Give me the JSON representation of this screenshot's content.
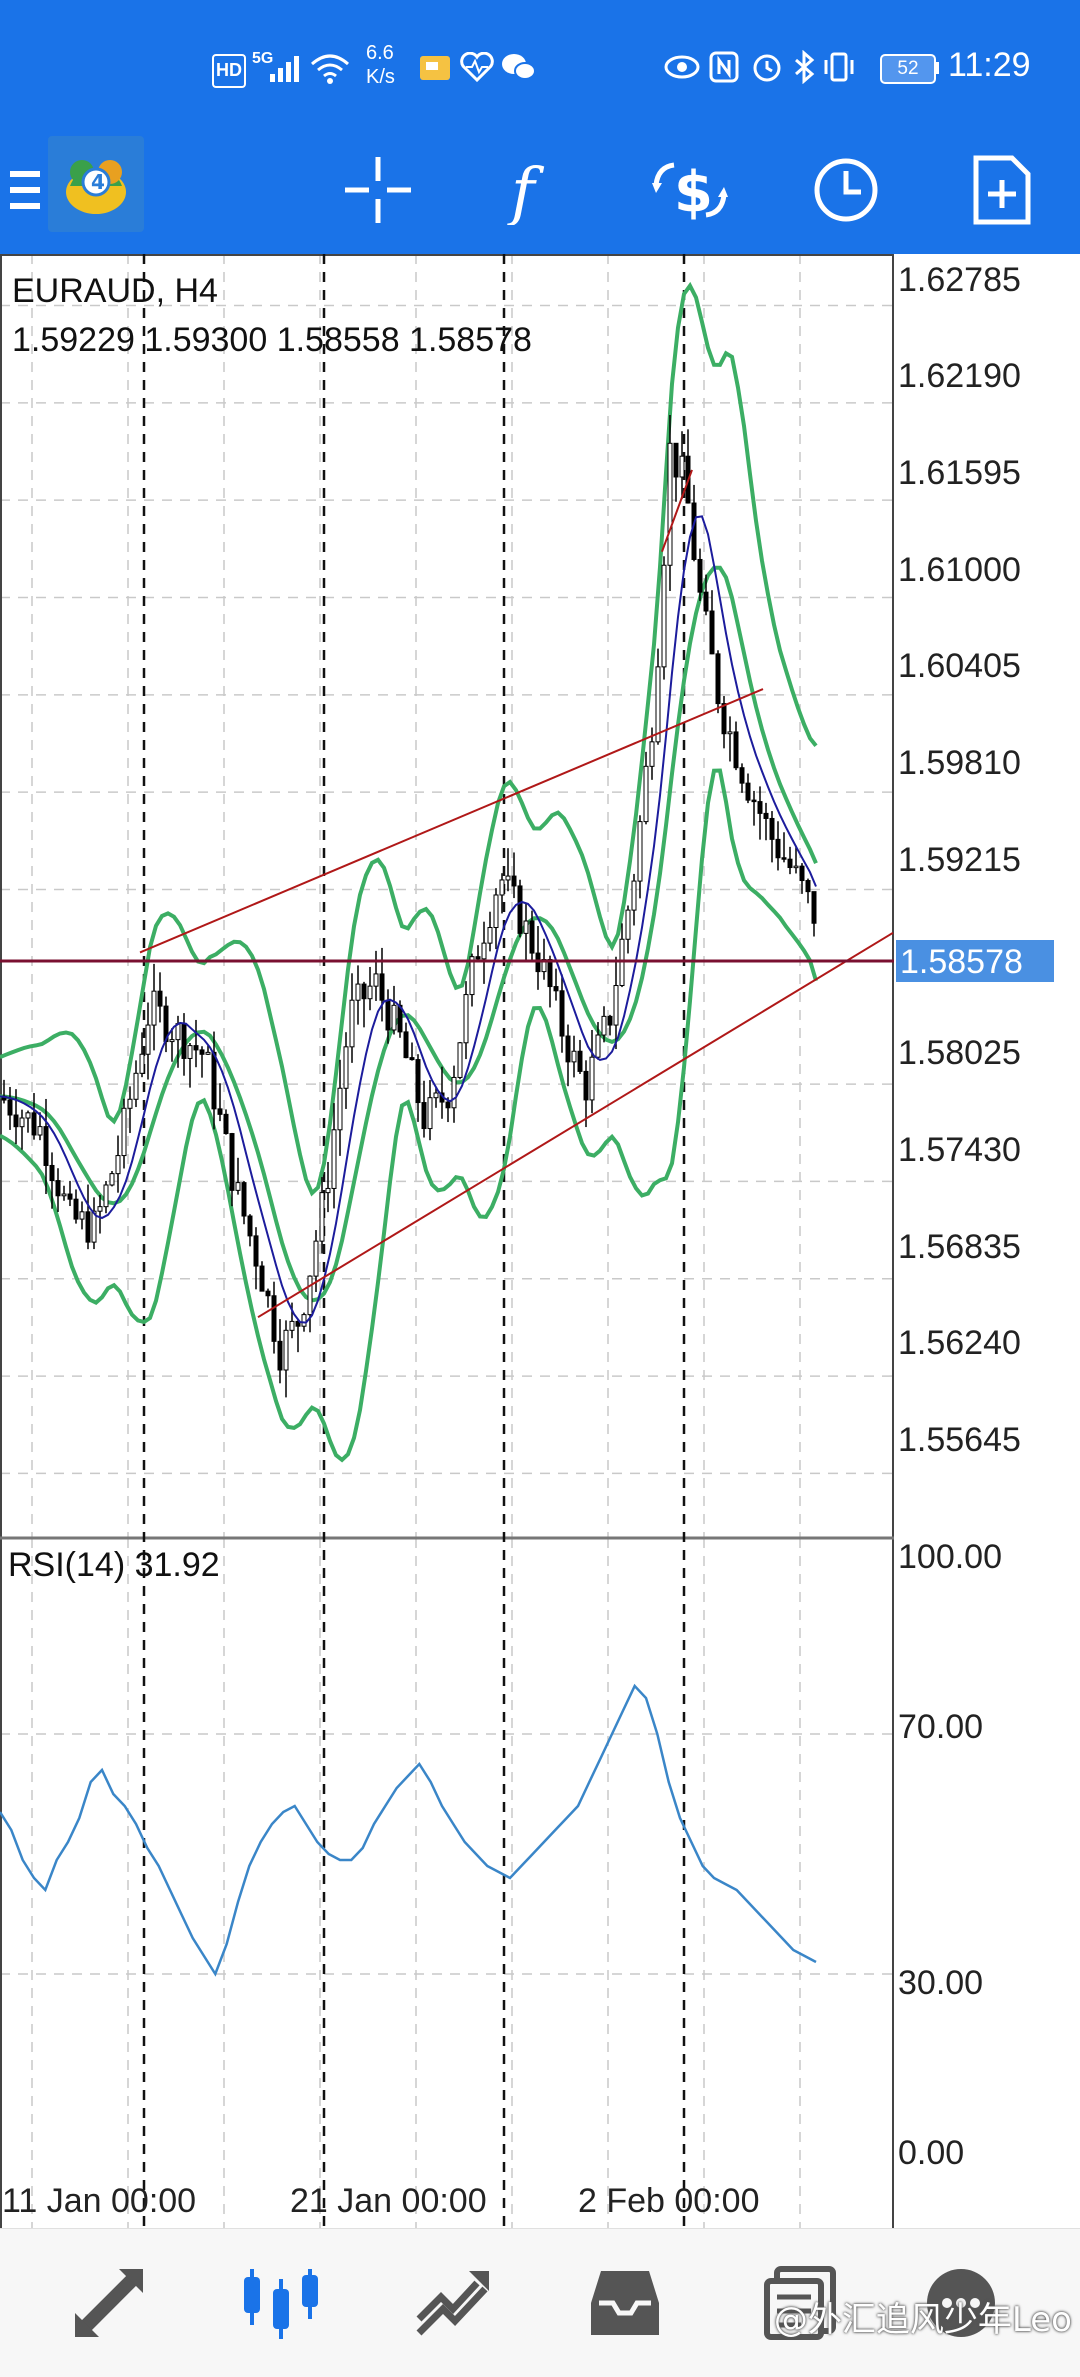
{
  "status_bar": {
    "hd": "HD",
    "net": "5G",
    "speed_value": "6.6",
    "speed_unit": "K/s",
    "battery": "52",
    "time": "11:29"
  },
  "toolbar": {
    "icons": [
      "menu-icon",
      "metatrader-logo",
      "crosshair-icon",
      "indicators-icon",
      "objects-icon",
      "timeframe-icon",
      "new-order-icon"
    ]
  },
  "chart": {
    "symbol_line": "EURAUD, H4",
    "ohlc_line": "1.59229 1.59300 1.58558 1.58578",
    "current_price": "1.58578",
    "price_axis": [
      "1.62785",
      "1.62190",
      "1.61595",
      "1.61000",
      "1.60405",
      "1.59810",
      "1.59215",
      "1.58025",
      "1.57430",
      "1.56835",
      "1.56240",
      "1.55645"
    ],
    "rsi_label": "RSI(14) 31.92",
    "rsi_axis": [
      "100.00",
      "70.00",
      "30.00",
      "0.00"
    ],
    "time_axis": [
      "11 Jan 00:00",
      "21 Jan 00:00",
      "2 Feb 00:00"
    ],
    "colors": {
      "candles": "#000000",
      "bollinger": "#3cae64",
      "moving_average": "#1c1c9c",
      "trendlines": "#b01818",
      "price_line": "#7a1030",
      "rsi": "#3a86c8",
      "price_tag_bg": "#4a90e2"
    }
  },
  "chart_data": {
    "type": "line",
    "title": "EURAUD, H4",
    "symbol": "EURAUD",
    "timeframe": "H4",
    "ohlc": {
      "open": 1.59229,
      "high": 1.593,
      "low": 1.58558,
      "close": 1.58578
    },
    "current_price": 1.58578,
    "price_axis_range": [
      1.5525,
      1.631
    ],
    "price_ticks": [
      1.62785,
      1.6219,
      1.61595,
      1.61,
      1.60405,
      1.5981,
      1.59215,
      1.58025,
      1.5743,
      1.56835,
      1.5624,
      1.55645
    ],
    "x_ticks": [
      "11 Jan 00:00",
      "21 Jan 00:00",
      "2 Feb 00:00"
    ],
    "series": [
      {
        "name": "RSI(14)",
        "last_value": 31.92,
        "ylim": [
          0,
          100
        ],
        "ticks": [
          0,
          30,
          70,
          100
        ],
        "values": [
          57,
          54,
          49,
          46,
          44,
          49,
          52,
          56,
          62,
          64,
          60,
          58,
          55,
          51,
          48,
          44,
          40,
          36,
          33,
          30,
          35,
          42,
          48,
          52,
          55,
          57,
          58,
          55,
          52,
          50,
          49,
          49,
          51,
          55,
          58,
          61,
          63,
          65,
          62,
          58,
          55,
          52,
          50,
          48,
          47,
          46,
          48,
          50,
          52,
          54,
          56,
          58,
          62,
          66,
          70,
          74,
          78,
          76,
          70,
          62,
          56,
          52,
          48,
          46,
          45,
          44,
          42,
          40,
          38,
          36,
          34,
          33,
          32
        ]
      }
    ],
    "grid": true,
    "legend": "none"
  },
  "bottom_nav": {
    "items": [
      "quotes-icon",
      "chart-icon",
      "trade-icon",
      "history-icon",
      "messages-icon",
      "settings-icon"
    ]
  },
  "watermark": "@外汇追风少年Leo"
}
